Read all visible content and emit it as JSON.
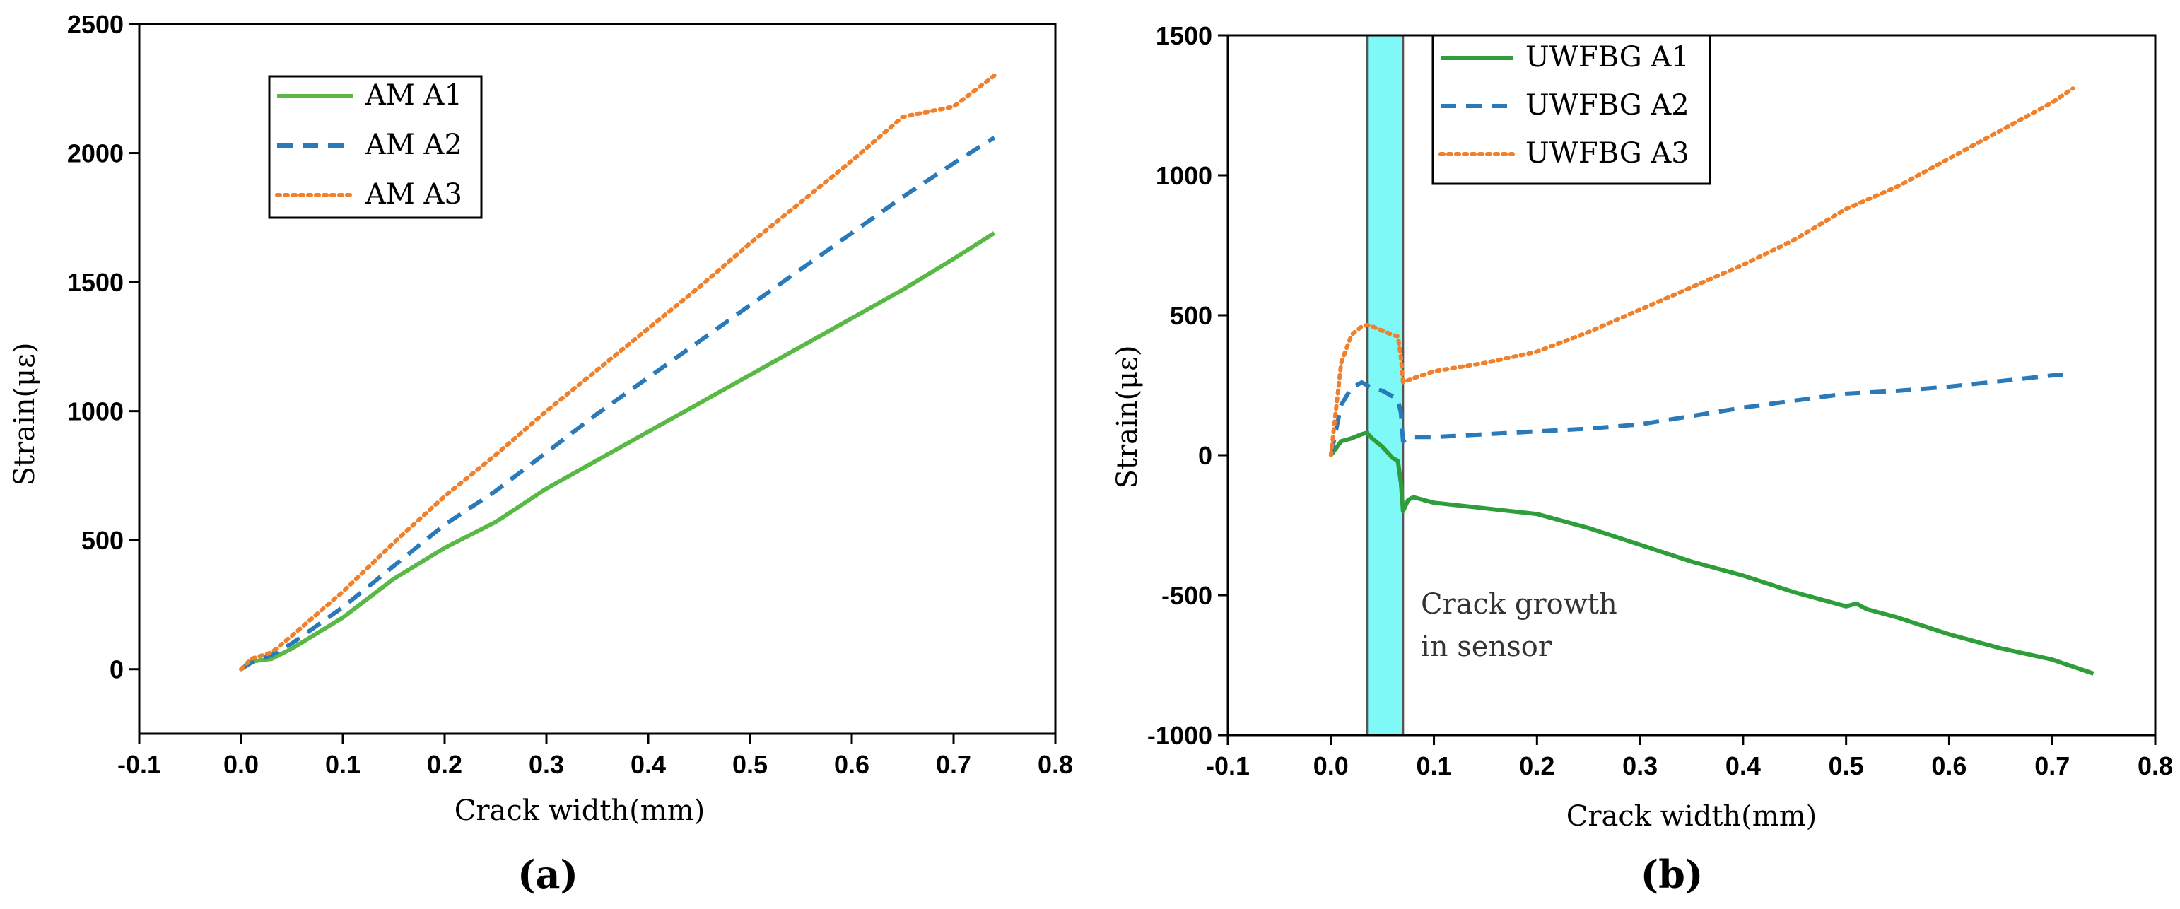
{
  "chart_data": [
    {
      "id": "a",
      "type": "line",
      "panel_label": "(a)",
      "xlabel": "Crack width(mm)",
      "ylabel": "Strain(με)",
      "xlim": [
        -0.1,
        0.8
      ],
      "ylim": [
        -250,
        2500
      ],
      "xticks": [
        -0.1,
        0.0,
        0.1,
        0.2,
        0.3,
        0.4,
        0.5,
        0.6,
        0.7,
        0.8
      ],
      "xtick_labels": [
        "-0.1",
        "0.0",
        "0.1",
        "0.2",
        "0.3",
        "0.4",
        "0.5",
        "0.6",
        "0.7",
        "0.8"
      ],
      "yticks": [
        0,
        500,
        1000,
        1500,
        2000,
        2500
      ],
      "ytick_labels": [
        "0",
        "500",
        "1000",
        "1500",
        "2000",
        "2500"
      ],
      "legend_position": "top-left",
      "series": [
        {
          "name": "AM A1",
          "color": "#5ab946",
          "style": "solid",
          "x": [
            0.0,
            0.01,
            0.03,
            0.05,
            0.1,
            0.15,
            0.2,
            0.22,
            0.25,
            0.3,
            0.35,
            0.4,
            0.45,
            0.5,
            0.55,
            0.6,
            0.65,
            0.7,
            0.74
          ],
          "y": [
            0,
            30,
            40,
            80,
            200,
            350,
            470,
            510,
            570,
            700,
            810,
            920,
            1030,
            1140,
            1250,
            1360,
            1470,
            1590,
            1690
          ]
        },
        {
          "name": "AM A2",
          "color": "#2a7ab9",
          "style": "dashed",
          "x": [
            0.0,
            0.01,
            0.03,
            0.05,
            0.1,
            0.15,
            0.2,
            0.25,
            0.3,
            0.35,
            0.4,
            0.45,
            0.5,
            0.55,
            0.6,
            0.65,
            0.7,
            0.74
          ],
          "y": [
            0,
            25,
            55,
            100,
            240,
            400,
            560,
            690,
            840,
            990,
            1130,
            1270,
            1410,
            1550,
            1690,
            1830,
            1960,
            2060
          ]
        },
        {
          "name": "AM A3",
          "color": "#f0802a",
          "style": "dotted",
          "x": [
            0.0,
            0.01,
            0.03,
            0.05,
            0.1,
            0.15,
            0.2,
            0.25,
            0.3,
            0.35,
            0.4,
            0.45,
            0.5,
            0.55,
            0.6,
            0.65,
            0.7,
            0.74
          ],
          "y": [
            0,
            40,
            65,
            130,
            300,
            490,
            670,
            830,
            1000,
            1160,
            1320,
            1480,
            1650,
            1810,
            1970,
            2140,
            2180,
            2300
          ]
        }
      ]
    },
    {
      "id": "b",
      "type": "line",
      "panel_label": "(b)",
      "xlabel": "Crack width(mm)",
      "ylabel": "Strain(με)",
      "xlim": [
        -0.1,
        0.8
      ],
      "ylim": [
        -1000,
        1500
      ],
      "xticks": [
        -0.1,
        0.0,
        0.1,
        0.2,
        0.3,
        0.4,
        0.5,
        0.6,
        0.7,
        0.8
      ],
      "xtick_labels": [
        "-0.1",
        "0.0",
        "0.1",
        "0.2",
        "0.3",
        "0.4",
        "0.5",
        "0.6",
        "0.7",
        "0.8"
      ],
      "yticks": [
        -1000,
        -500,
        0,
        500,
        1000,
        1500
      ],
      "ytick_labels": [
        "-1000",
        "-500",
        "0",
        "500",
        "1000",
        "1500"
      ],
      "legend_position": "top-center",
      "highlight_band": {
        "x_start": 0.035,
        "x_end": 0.07,
        "color": "#7ff8f8"
      },
      "annotation": [
        "Crack growth",
        "in sensor"
      ],
      "series": [
        {
          "name": "UWFBG A1",
          "color": "#2f9e3a",
          "style": "solid",
          "x": [
            0.0,
            0.01,
            0.02,
            0.03,
            0.035,
            0.04,
            0.05,
            0.06,
            0.065,
            0.068,
            0.07,
            0.075,
            0.08,
            0.1,
            0.15,
            0.2,
            0.25,
            0.3,
            0.35,
            0.4,
            0.45,
            0.5,
            0.51,
            0.52,
            0.55,
            0.6,
            0.65,
            0.7,
            0.74
          ],
          "y": [
            0,
            50,
            60,
            75,
            80,
            60,
            30,
            -10,
            -20,
            -100,
            -200,
            -160,
            -150,
            -170,
            -190,
            -210,
            -260,
            -320,
            -380,
            -430,
            -490,
            -540,
            -530,
            -550,
            -580,
            -640,
            -690,
            -730,
            -780
          ]
        },
        {
          "name": "UWFBG A2",
          "color": "#2a7ab9",
          "style": "dashed",
          "x": [
            0.0,
            0.01,
            0.02,
            0.03,
            0.035,
            0.04,
            0.05,
            0.06,
            0.065,
            0.068,
            0.07,
            0.08,
            0.1,
            0.15,
            0.2,
            0.25,
            0.3,
            0.35,
            0.4,
            0.45,
            0.5,
            0.55,
            0.6,
            0.65,
            0.7,
            0.72
          ],
          "y": [
            0,
            180,
            240,
            260,
            250,
            240,
            230,
            210,
            200,
            150,
            50,
            65,
            65,
            75,
            85,
            95,
            110,
            140,
            170,
            195,
            220,
            230,
            245,
            265,
            285,
            290
          ]
        },
        {
          "name": "UWFBG A3",
          "color": "#f0802a",
          "style": "dotted",
          "x": [
            0.0,
            0.01,
            0.02,
            0.03,
            0.035,
            0.04,
            0.05,
            0.06,
            0.065,
            0.068,
            0.07,
            0.08,
            0.1,
            0.15,
            0.2,
            0.25,
            0.3,
            0.35,
            0.4,
            0.45,
            0.5,
            0.55,
            0.6,
            0.65,
            0.7,
            0.72
          ],
          "y": [
            0,
            330,
            430,
            460,
            465,
            460,
            445,
            430,
            425,
            350,
            260,
            275,
            300,
            330,
            370,
            440,
            520,
            600,
            680,
            770,
            880,
            960,
            1060,
            1160,
            1260,
            1310
          ]
        }
      ]
    }
  ]
}
